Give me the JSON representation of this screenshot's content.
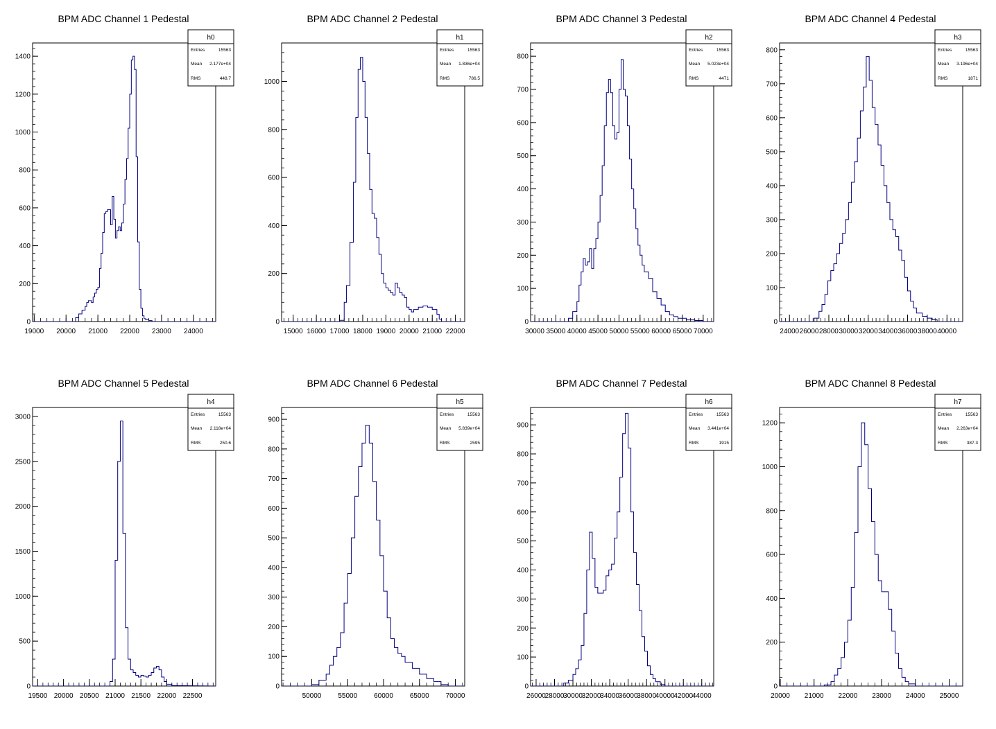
{
  "colors": {
    "hist_line": "#00007f",
    "frame": "#000000",
    "background": "#ffffff"
  },
  "stats_labels": {
    "entries": "Entries",
    "mean": "Mean",
    "rms": "RMS"
  },
  "chart_data": [
    {
      "type": "histogram",
      "title": "BPM ADC Channel 1 Pedestal",
      "stats": {
        "name": "h0",
        "entries": "15563",
        "mean": "2.177e+04",
        "rms": "448.7"
      },
      "xlim": [
        18950,
        24700
      ],
      "ylim": [
        0,
        1470
      ],
      "xticks": [
        "19000",
        "20000",
        "21000",
        "22000",
        "23000",
        "24000"
      ],
      "yticks": [
        "0",
        "200",
        "400",
        "600",
        "800",
        "1000",
        "1200",
        "1400"
      ],
      "x": [
        20300,
        20400,
        20500,
        20600,
        20650,
        20700,
        20800,
        20850,
        20900,
        20950,
        21000,
        21050,
        21100,
        21150,
        21200,
        21250,
        21300,
        21400,
        21450,
        21500,
        21550,
        21600,
        21650,
        21700,
        21750,
        21800,
        21850,
        21900,
        21950,
        22000,
        22050,
        22100,
        22150,
        22200,
        22250,
        22300,
        22350,
        22400,
        22450,
        22500,
        22600,
        22700
      ],
      "y": [
        20,
        40,
        60,
        80,
        100,
        110,
        100,
        130,
        150,
        170,
        180,
        280,
        360,
        470,
        570,
        580,
        590,
        510,
        660,
        540,
        440,
        480,
        500,
        480,
        520,
        620,
        750,
        860,
        1020,
        1200,
        1380,
        1400,
        1330,
        870,
        420,
        170,
        70,
        30,
        15,
        10,
        5,
        0
      ]
    },
    {
      "type": "histogram",
      "title": "BPM ADC Channel 2 Pedestal",
      "stats": {
        "name": "h1",
        "entries": "15563",
        "mean": "1.836e+04",
        "rms": "786.5"
      },
      "xlim": [
        14500,
        22400
      ],
      "ylim": [
        0,
        1160
      ],
      "xticks": [
        "15000",
        "16000",
        "17000",
        "18000",
        "19000",
        "20000",
        "21000",
        "22000"
      ],
      "yticks": [
        "0",
        "200",
        "400",
        "600",
        "800",
        "1000"
      ],
      "x": [
        17000,
        17200,
        17300,
        17450,
        17600,
        17700,
        17800,
        17900,
        18000,
        18100,
        18200,
        18300,
        18400,
        18500,
        18600,
        18700,
        18800,
        18900,
        19000,
        19100,
        19200,
        19300,
        19400,
        19500,
        19600,
        19700,
        19800,
        19900,
        20000,
        20100,
        20200,
        20400,
        20600,
        20800,
        21000,
        21200,
        21300,
        21400
      ],
      "y": [
        5,
        80,
        150,
        330,
        580,
        850,
        1050,
        1100,
        1000,
        850,
        700,
        550,
        450,
        430,
        350,
        280,
        200,
        160,
        140,
        130,
        120,
        110,
        160,
        140,
        120,
        110,
        100,
        60,
        50,
        40,
        50,
        60,
        65,
        60,
        50,
        30,
        10,
        0
      ]
    },
    {
      "type": "histogram",
      "title": "BPM ADC Channel 3 Pedestal",
      "stats": {
        "name": "h2",
        "entries": "15563",
        "mean": "5.023e+04",
        "rms": "4471"
      },
      "xlim": [
        29000,
        72500
      ],
      "ylim": [
        0,
        840
      ],
      "xticks": [
        "30000",
        "35000",
        "40000",
        "45000",
        "50000",
        "55000",
        "60000",
        "65000",
        "70000"
      ],
      "yticks": [
        "0",
        "100",
        "200",
        "300",
        "400",
        "500",
        "600",
        "700",
        "800"
      ],
      "x": [
        36000,
        38000,
        39000,
        40000,
        40500,
        41000,
        41500,
        42000,
        42500,
        43000,
        43500,
        44000,
        44500,
        45000,
        45500,
        46000,
        46500,
        47000,
        47500,
        48000,
        48500,
        49000,
        49500,
        50000,
        50500,
        51000,
        51500,
        52000,
        52500,
        53000,
        53500,
        54000,
        54500,
        55000,
        55500,
        56000,
        57000,
        58000,
        59000,
        60000,
        61000,
        62000,
        63000,
        64000,
        66000,
        68000,
        70000
      ],
      "y": [
        0,
        10,
        30,
        60,
        110,
        150,
        190,
        170,
        180,
        220,
        160,
        220,
        250,
        300,
        380,
        470,
        590,
        690,
        730,
        690,
        590,
        550,
        570,
        700,
        790,
        700,
        680,
        590,
        490,
        400,
        340,
        280,
        230,
        200,
        170,
        150,
        130,
        90,
        70,
        50,
        30,
        20,
        15,
        10,
        5,
        3,
        0
      ]
    },
    {
      "type": "histogram",
      "title": "BPM ADC Channel 4 Pedestal",
      "stats": {
        "name": "h3",
        "entries": "15563",
        "mean": "3.196e+04",
        "rms": "1871"
      },
      "xlim": [
        23000,
        41600
      ],
      "ylim": [
        0,
        820
      ],
      "xticks": [
        "24000",
        "26000",
        "28000",
        "30000",
        "32000",
        "34000",
        "36000",
        "38000",
        "40000"
      ],
      "yticks": [
        "0",
        "100",
        "200",
        "300",
        "400",
        "500",
        "600",
        "700",
        "800"
      ],
      "x": [
        26000,
        26500,
        27000,
        27300,
        27600,
        27900,
        28200,
        28500,
        28800,
        29100,
        29400,
        29700,
        30000,
        30300,
        30600,
        30900,
        31200,
        31500,
        31800,
        32100,
        32400,
        32700,
        33000,
        33300,
        33600,
        33900,
        34200,
        34500,
        34800,
        35100,
        35400,
        35700,
        36000,
        36300,
        36600,
        36900,
        37500,
        38000,
        38500,
        39000
      ],
      "y": [
        0,
        10,
        30,
        50,
        80,
        120,
        150,
        170,
        200,
        230,
        260,
        300,
        350,
        410,
        470,
        540,
        620,
        690,
        780,
        710,
        630,
        580,
        520,
        460,
        400,
        350,
        300,
        270,
        250,
        210,
        180,
        130,
        90,
        60,
        40,
        25,
        15,
        10,
        5,
        0
      ]
    },
    {
      "type": "histogram",
      "title": "BPM ADC Channel 5 Pedestal",
      "stats": {
        "name": "h4",
        "entries": "15563",
        "mean": "2.118e+04",
        "rms": "250.6"
      },
      "xlim": [
        19400,
        22950
      ],
      "ylim": [
        0,
        3100
      ],
      "xticks": [
        "19500",
        "20000",
        "20500",
        "21000",
        "21500",
        "22000",
        "22500"
      ],
      "yticks": [
        "0",
        "500",
        "1000",
        "1500",
        "2000",
        "2500",
        "3000"
      ],
      "x": [
        20900,
        20950,
        21000,
        21050,
        21100,
        21150,
        21200,
        21250,
        21300,
        21350,
        21400,
        21450,
        21500,
        21550,
        21600,
        21650,
        21700,
        21750,
        21800,
        21850,
        21900,
        21950,
        22000,
        22100
      ],
      "y": [
        50,
        300,
        1400,
        2500,
        2950,
        1700,
        650,
        300,
        180,
        150,
        120,
        100,
        120,
        110,
        100,
        120,
        150,
        200,
        220,
        180,
        100,
        50,
        20,
        5
      ]
    },
    {
      "type": "histogram",
      "title": "BPM ADC Channel 6 Pedestal",
      "stats": {
        "name": "h5",
        "entries": "15563",
        "mean": "5.839e+04",
        "rms": "2595"
      },
      "xlim": [
        45800,
        71300
      ],
      "ylim": [
        0,
        940
      ],
      "xticks": [
        "50000",
        "55000",
        "60000",
        "65000",
        "70000"
      ],
      "yticks": [
        "0",
        "100",
        "200",
        "300",
        "400",
        "500",
        "600",
        "700",
        "800",
        "900"
      ],
      "x": [
        50000,
        51000,
        52000,
        52500,
        53000,
        53500,
        54000,
        54500,
        55000,
        55500,
        56000,
        56500,
        57000,
        57500,
        58000,
        58500,
        59000,
        59500,
        60000,
        60500,
        61000,
        61500,
        62000,
        62500,
        63000,
        64000,
        65000,
        66000,
        67000,
        68000,
        69000
      ],
      "y": [
        5,
        20,
        40,
        70,
        100,
        130,
        180,
        280,
        380,
        500,
        640,
        740,
        820,
        880,
        820,
        690,
        560,
        440,
        320,
        230,
        160,
        130,
        110,
        100,
        80,
        60,
        40,
        25,
        15,
        5,
        0
      ]
    },
    {
      "type": "histogram",
      "title": "BPM ADC Channel 7 Pedestal",
      "stats": {
        "name": "h6",
        "entries": "15563",
        "mean": "3.441e+04",
        "rms": "1915"
      },
      "xlim": [
        25400,
        45300
      ],
      "ylim": [
        0,
        960
      ],
      "xticks": [
        "26000",
        "28000",
        "30000",
        "32000",
        "34000",
        "36000",
        "38000",
        "40000",
        "42000",
        "44000"
      ],
      "yticks": [
        "0",
        "100",
        "200",
        "300",
        "400",
        "500",
        "600",
        "700",
        "800",
        "900"
      ],
      "x": [
        29000,
        29500,
        30000,
        30300,
        30600,
        30900,
        31200,
        31500,
        31800,
        32100,
        32400,
        32700,
        33000,
        33300,
        33600,
        33900,
        34200,
        34500,
        34800,
        35100,
        35400,
        35700,
        36000,
        36300,
        36600,
        36900,
        37200,
        37500,
        37800,
        38100,
        38400,
        38700,
        39000,
        39500,
        40000
      ],
      "y": [
        10,
        20,
        40,
        60,
        90,
        140,
        250,
        400,
        530,
        440,
        340,
        320,
        320,
        330,
        380,
        400,
        420,
        510,
        600,
        720,
        870,
        940,
        820,
        600,
        460,
        350,
        260,
        170,
        120,
        70,
        40,
        25,
        15,
        5,
        0
      ]
    },
    {
      "type": "histogram",
      "title": "BPM ADC Channel 8 Pedestal",
      "stats": {
        "name": "h7",
        "entries": "15563",
        "mean": "2.263e+04",
        "rms": "387.3"
      },
      "xlim": [
        19980,
        25400
      ],
      "ylim": [
        0,
        1270
      ],
      "xticks": [
        "20000",
        "21000",
        "22000",
        "23000",
        "24000",
        "25000"
      ],
      "yticks": [
        "0",
        "200",
        "400",
        "600",
        "800",
        "1000",
        "1200"
      ],
      "x": [
        21300,
        21500,
        21600,
        21700,
        21800,
        21900,
        22000,
        22100,
        22200,
        22300,
        22400,
        22500,
        22600,
        22700,
        22800,
        22900,
        23000,
        23100,
        23200,
        23300,
        23400,
        23500,
        23600,
        23700,
        23800,
        24000
      ],
      "y": [
        5,
        20,
        50,
        80,
        130,
        200,
        300,
        450,
        700,
        1000,
        1200,
        1100,
        900,
        750,
        600,
        480,
        430,
        430,
        350,
        250,
        150,
        80,
        40,
        20,
        10,
        0
      ]
    }
  ]
}
